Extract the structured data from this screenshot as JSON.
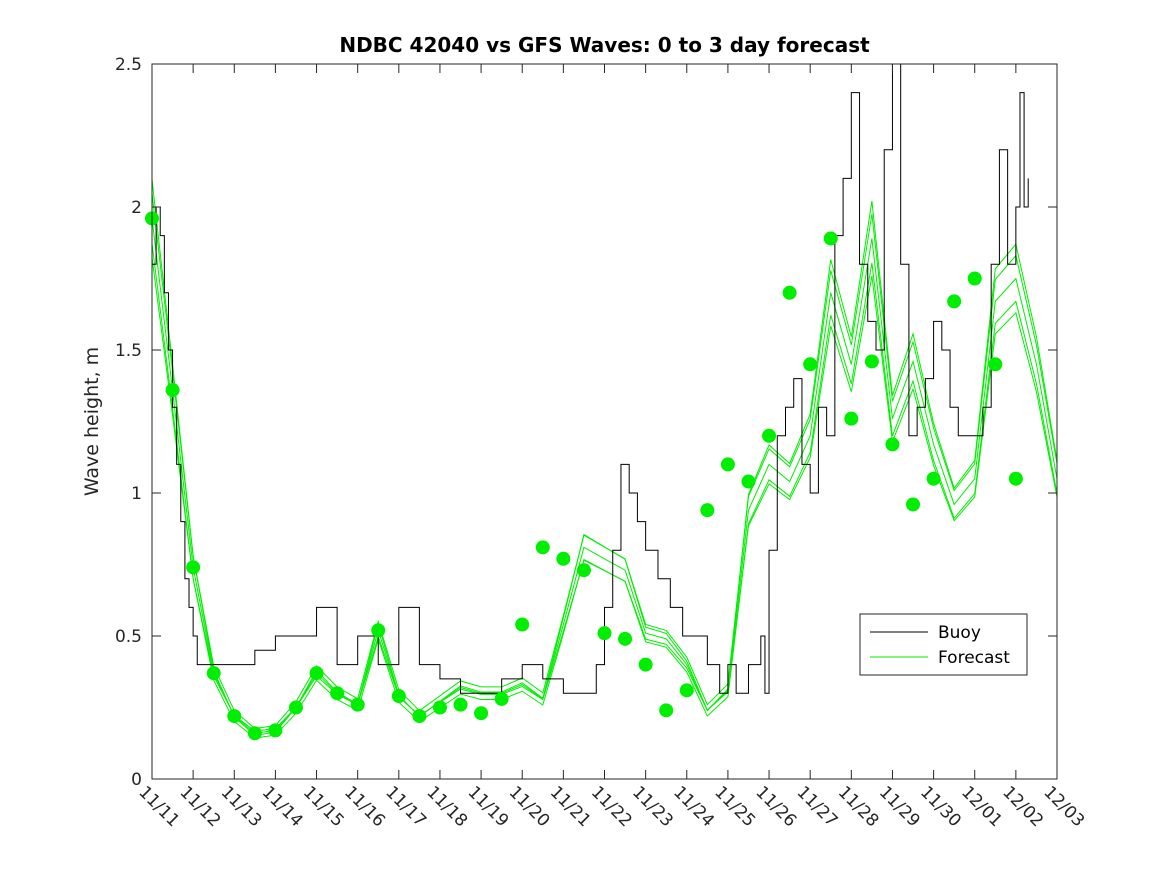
{
  "chart_data": {
    "type": "line",
    "title": "NDBC 42040 vs GFS Waves: 0 to 3 day forecast",
    "ylabel": "Wave height, m",
    "xlabel": "",
    "xlim": [
      0,
      22
    ],
    "ylim": [
      0,
      2.5
    ],
    "yticks": [
      0,
      0.5,
      1,
      1.5,
      2,
      2.5
    ],
    "ytick_labels": [
      "0",
      "0.5",
      "1",
      "1.5",
      "2",
      "2.5"
    ],
    "xtick_labels": [
      "11/11",
      "11/12",
      "11/13",
      "11/14",
      "11/15",
      "11/16",
      "11/17",
      "11/18",
      "11/19",
      "11/20",
      "11/21",
      "11/22",
      "11/23",
      "11/24",
      "11/25",
      "11/26",
      "11/27",
      "11/28",
      "11/29",
      "11/30",
      "12/01",
      "12/02",
      "12/03"
    ],
    "legend": {
      "location": "lower-right",
      "entries": [
        "Buoy",
        "Forecast"
      ]
    },
    "colors": {
      "buoy": "#000000",
      "forecast": "#00ee00",
      "axis": "#262626"
    },
    "series": [
      {
        "name": "Buoy",
        "x": [
          0,
          0.1,
          0.2,
          0.3,
          0.4,
          0.5,
          0.6,
          0.7,
          0.8,
          0.9,
          1.0,
          1.1,
          1.2,
          1.3,
          1.5,
          2.0,
          2.5,
          3.0,
          3.5,
          4.0,
          4.5,
          5.0,
          5.5,
          6.0,
          6.5,
          7.0,
          7.5,
          8.0,
          8.5,
          9.0,
          9.5,
          10.0,
          10.3,
          10.6,
          10.8,
          11.0,
          11.2,
          11.4,
          11.6,
          11.8,
          12.0,
          12.3,
          12.6,
          12.9,
          13.2,
          13.5,
          13.8,
          14.0,
          14.2,
          14.5,
          14.8,
          14.9,
          15.0,
          15.2,
          15.4,
          15.6,
          15.8,
          16.0,
          16.2,
          16.4,
          16.6,
          16.8,
          17.0,
          17.2,
          17.4,
          17.6,
          17.8,
          18.0,
          18.2,
          18.4,
          18.6,
          18.8,
          19.0,
          19.2,
          19.4,
          19.6,
          19.8,
          20.0,
          20.2,
          20.4,
          20.6,
          20.8,
          21.0,
          21.1,
          21.2,
          21.3
        ],
        "values": [
          1.8,
          2.0,
          1.9,
          1.7,
          1.5,
          1.3,
          1.1,
          0.9,
          0.7,
          0.6,
          0.5,
          0.4,
          0.4,
          0.4,
          0.4,
          0.4,
          0.45,
          0.5,
          0.5,
          0.6,
          0.4,
          0.5,
          0.4,
          0.6,
          0.4,
          0.35,
          0.3,
          0.3,
          0.35,
          0.4,
          0.35,
          0.3,
          0.3,
          0.3,
          0.4,
          0.6,
          0.8,
          1.1,
          1.0,
          0.9,
          0.8,
          0.7,
          0.6,
          0.5,
          0.5,
          0.4,
          0.3,
          0.4,
          0.3,
          0.4,
          0.5,
          0.3,
          0.8,
          1.2,
          1.3,
          1.4,
          1.1,
          1.0,
          1.3,
          1.2,
          1.9,
          2.1,
          2.4,
          1.8,
          1.6,
          1.5,
          2.2,
          2.5,
          1.8,
          1.2,
          1.3,
          1.4,
          1.6,
          1.5,
          1.3,
          1.2,
          1.2,
          1.2,
          1.3,
          1.8,
          2.2,
          1.8,
          2.0,
          2.4,
          2.0,
          2.1
        ]
      },
      {
        "name": "Forecast",
        "x": [
          0,
          0.5,
          1.0,
          1.5,
          2.0,
          2.5,
          3.0,
          3.5,
          4.0,
          4.5,
          5.0,
          5.5,
          6.0,
          6.5,
          7.0,
          7.5,
          8.0,
          8.5,
          9.0,
          9.5,
          10.0,
          10.5,
          11.0,
          11.5,
          12.0,
          12.5,
          13.0,
          13.5,
          14.0,
          14.5,
          15.0,
          15.5,
          16.0,
          16.5,
          17.0,
          17.5,
          18.0,
          18.5,
          19.0,
          19.5,
          20.0,
          20.5,
          21.0,
          21.5,
          22.0
        ],
        "values": [
          1.96,
          1.36,
          0.74,
          0.37,
          0.22,
          0.16,
          0.17,
          0.25,
          0.37,
          0.3,
          0.26,
          0.52,
          0.29,
          0.22,
          0.27,
          0.32,
          0.3,
          0.3,
          0.33,
          0.28,
          0.54,
          0.81,
          0.77,
          0.73,
          0.51,
          0.49,
          0.4,
          0.24,
          0.31,
          0.94,
          1.1,
          1.04,
          1.2,
          1.7,
          1.45,
          1.89,
          1.26,
          1.46,
          1.17,
          0.96,
          1.05,
          1.67,
          1.75,
          1.45,
          1.05
        ]
      },
      {
        "name": "Forecast analysis points",
        "x": [
          0,
          0.5,
          1.0,
          1.5,
          2.0,
          2.5,
          3.0,
          3.5,
          4.0,
          4.5,
          5.0,
          5.5,
          6.0,
          6.5,
          7.0,
          7.5,
          8.0,
          8.5,
          9.0,
          9.5,
          10.0,
          10.5,
          11.0,
          11.5,
          12.0,
          12.5,
          13.0,
          13.5,
          14.0,
          14.5,
          15.0,
          15.5,
          16.0,
          16.5,
          17.0,
          17.5,
          18.0,
          18.5,
          19.0,
          19.5,
          20.0,
          20.5,
          21.0
        ],
        "values": [
          1.96,
          1.36,
          0.74,
          0.37,
          0.22,
          0.16,
          0.17,
          0.25,
          0.37,
          0.3,
          0.26,
          0.52,
          0.29,
          0.22,
          0.25,
          0.26,
          0.23,
          0.28,
          0.54,
          0.81,
          0.77,
          0.73,
          0.51,
          0.49,
          0.4,
          0.24,
          0.31,
          0.94,
          1.1,
          1.04,
          1.2,
          1.7,
          1.45,
          1.89,
          1.26,
          1.46,
          1.17,
          0.96,
          1.05,
          1.67,
          1.75,
          1.45,
          1.05
        ]
      }
    ]
  }
}
